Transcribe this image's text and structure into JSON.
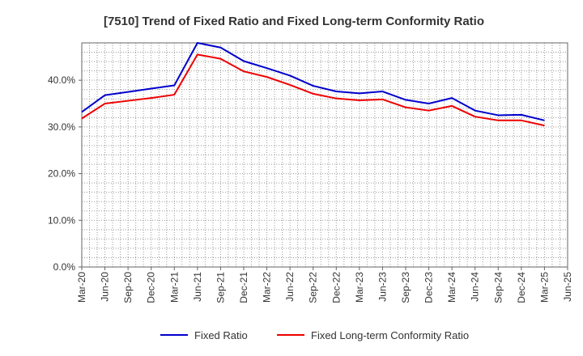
{
  "chart_data": {
    "type": "line",
    "title": "[7510]  Trend of Fixed Ratio and Fixed Long-term Conformity Ratio",
    "xlabel": "",
    "ylabel": "",
    "ylim": [
      0,
      48
    ],
    "yticks": [
      0,
      10,
      20,
      30,
      40
    ],
    "ytick_labels": [
      "0.0%",
      "10.0%",
      "20.0%",
      "30.0%",
      "40.0%"
    ],
    "x_tick_labels": [
      "Mar-20",
      "Jun-20",
      "Sep-20",
      "Dec-20",
      "Mar-21",
      "Jun-21",
      "Sep-21",
      "Dec-21",
      "Mar-22",
      "Jun-22",
      "Sep-22",
      "Dec-22",
      "Mar-23",
      "Jun-23",
      "Sep-23",
      "Dec-23",
      "Mar-24",
      "Jun-24",
      "Sep-24",
      "Dec-24",
      "Mar-25",
      "Jun-25"
    ],
    "categories": [
      "Mar-20",
      "Jun-20",
      "Sep-20",
      "Dec-20",
      "Mar-21",
      "Jun-21",
      "Sep-21",
      "Dec-21",
      "Mar-22",
      "Jun-22",
      "Sep-22",
      "Dec-22",
      "Mar-23",
      "Jun-23",
      "Sep-23",
      "Dec-23",
      "Mar-24",
      "Jun-24",
      "Sep-24",
      "Dec-24",
      "Mar-25"
    ],
    "grid": true,
    "legend_position": "bottom",
    "series": [
      {
        "name": "Fixed Ratio",
        "color": "#0000cc",
        "values": [
          33.2,
          36.8,
          37.5,
          38.2,
          38.9,
          48.0,
          47.0,
          44.1,
          42.6,
          41.0,
          38.8,
          37.6,
          37.2,
          37.6,
          35.8,
          35.0,
          36.2,
          33.5,
          32.5,
          32.6,
          31.4
        ]
      },
      {
        "name": "Fixed Long-term Conformity Ratio",
        "color": "#ee0000",
        "values": [
          31.8,
          35.0,
          35.6,
          36.2,
          36.9,
          45.5,
          44.6,
          41.9,
          40.7,
          39.0,
          37.1,
          36.1,
          35.7,
          35.9,
          34.2,
          33.5,
          34.5,
          32.2,
          31.4,
          31.4,
          30.3
        ]
      }
    ]
  }
}
